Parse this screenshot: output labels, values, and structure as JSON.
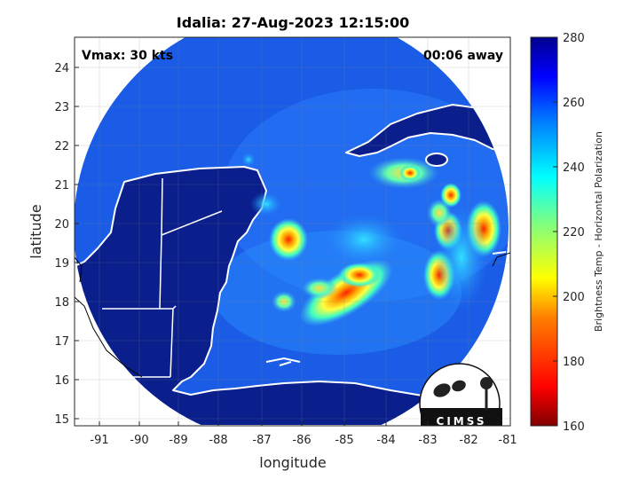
{
  "title": "Idalia: 27-Aug-2023 12:15:00",
  "vmax_label": "Vmax: 30 kts",
  "time_away_label": "00:06 away",
  "x_axis": {
    "label": "longitude",
    "ticks": [
      "-91",
      "-90",
      "-89",
      "-88",
      "-87",
      "-86",
      "-85",
      "-84",
      "-83",
      "-82",
      "-81"
    ],
    "range": [
      -91.5,
      -81
    ]
  },
  "y_axis": {
    "label": "latitude",
    "ticks": [
      "15",
      "16",
      "17",
      "18",
      "19",
      "20",
      "21",
      "22",
      "23",
      "24"
    ],
    "range": [
      14.8,
      24.8
    ]
  },
  "colorbar": {
    "label": "Brightness Temp - Horizontal Polarization",
    "ticks": [
      "160",
      "180",
      "200",
      "220",
      "240",
      "260",
      "280"
    ],
    "range": [
      160,
      280
    ]
  },
  "logo_text": "CIMSS",
  "colors": {
    "ocean_background": "#1a5ce6",
    "land": "#0a1f8c",
    "coastline": "#ffffff"
  }
}
